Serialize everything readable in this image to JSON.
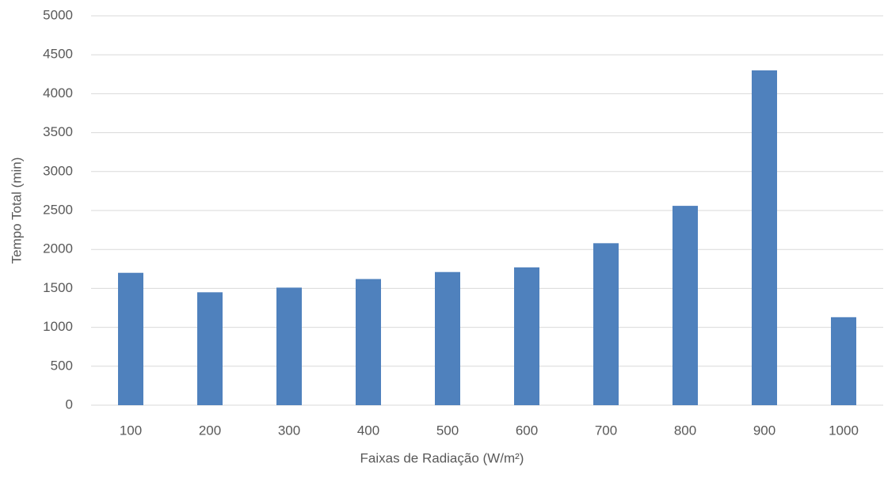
{
  "chart_data": {
    "type": "bar",
    "x_label": "Faixas de Radiação (W/m²)",
    "y_label": "Tempo Total (min)",
    "categories": [
      "100",
      "200",
      "300",
      "400",
      "500",
      "600",
      "700",
      "800",
      "900",
      "1000"
    ],
    "values": [
      1700,
      1450,
      1510,
      1620,
      1710,
      1770,
      2080,
      2560,
      4300,
      1130
    ],
    "color": "#4f81bd",
    "ylim": [
      0,
      5000
    ],
    "yticks": [
      0,
      500,
      1000,
      1500,
      2000,
      2500,
      3000,
      3500,
      4000,
      4500,
      5000
    ],
    "grid": true
  }
}
